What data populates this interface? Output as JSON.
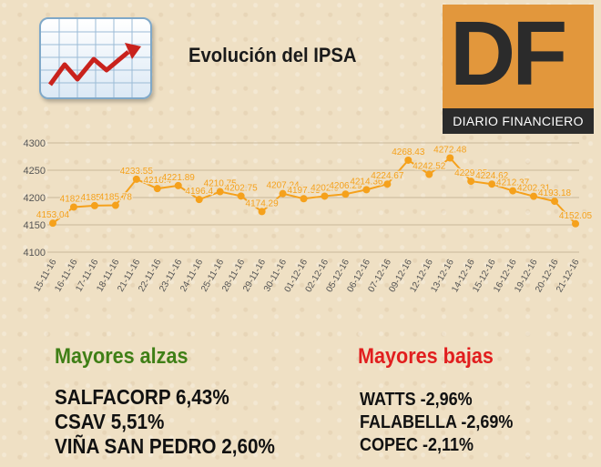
{
  "header": {
    "title": "Evolución del IPSA",
    "logo": {
      "letters": "DF",
      "tagline": "DIARIO FINANCIERO",
      "color": "#e2973c"
    }
  },
  "chart_data": {
    "type": "line",
    "categories": [
      "15-11-16",
      "16-11-16",
      "17-11-16",
      "18-11-16",
      "21-11-16",
      "22-11-16",
      "23-11-16",
      "24-11-16",
      "25-11-16",
      "28-11-16",
      "29-11-16",
      "30-11-16",
      "01-12-16",
      "02-12-16",
      "05-12-16",
      "06-12-16",
      "07-12-16",
      "09-12-16",
      "12-12-16",
      "13-12-16",
      "14-12-16",
      "15-12-16",
      "16-12-16",
      "19-12-16",
      "20-12-16",
      "21-12-16"
    ],
    "values": [
      4153.04,
      4182.6,
      4185.2,
      4185.78,
      4233.55,
      4216.4,
      4221.89,
      4196.4,
      4210.75,
      4202.75,
      4174.29,
      4207.24,
      4197.93,
      4202.6,
      4206.29,
      4214.36,
      4224.67,
      4268.43,
      4242.52,
      4272.48,
      4229.85,
      4224.62,
      4212.37,
      4202.31,
      4193.18,
      4152.05
    ],
    "labels": [
      "4153.04",
      "4182.6",
      "4185.2",
      "4185.78",
      "4233.55",
      "4216.4",
      "4221.89",
      "4196.4",
      "4210.75",
      "4202.75",
      "4174.29",
      "4207.24",
      "4197.93",
      "4202.6",
      "4206.29",
      "4214.36",
      "4224.67",
      "4268.43",
      "4242.52",
      "4272.48",
      "4229.85",
      "4224.62",
      "4212.37",
      "4202.31",
      "4193.18",
      "4152.05"
    ],
    "yticks": [
      4100,
      4150,
      4200,
      4250,
      4300
    ],
    "ylim": [
      4100,
      4300
    ],
    "grid": true,
    "color": "#f5a11c"
  },
  "winners": {
    "heading": "Mayores alzas",
    "items": [
      "SALFACORP 6,43%",
      "CSAV 5,51%",
      "VIÑA SAN PEDRO 2,60%"
    ]
  },
  "losers": {
    "heading": "Mayores bajas",
    "items": [
      "WATTS -2,96%",
      "FALABELLA -2,69%",
      "COPEC -2,11%"
    ]
  }
}
